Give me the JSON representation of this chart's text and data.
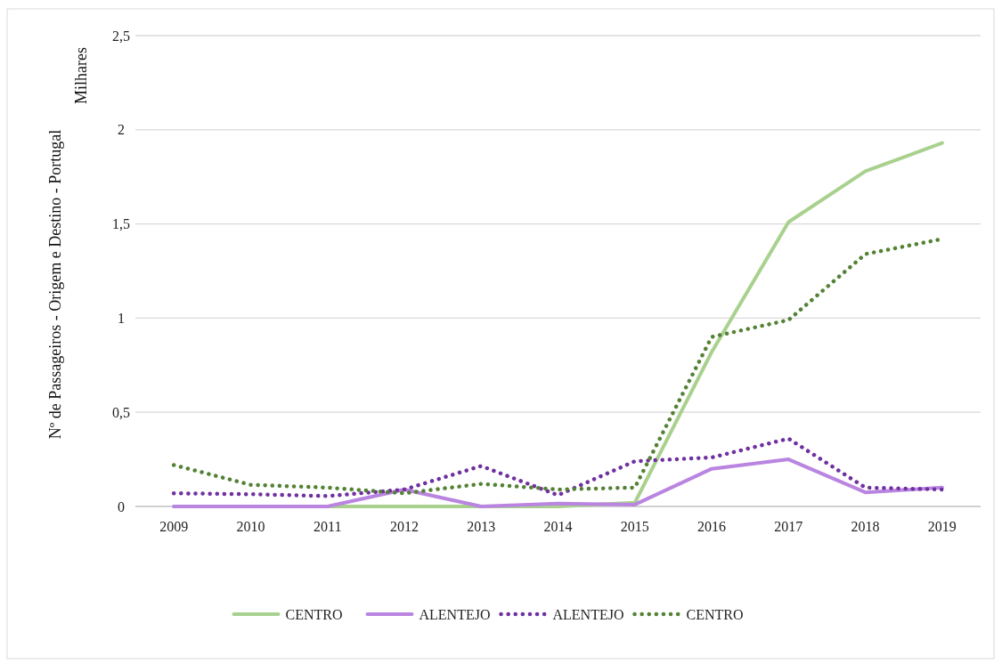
{
  "chart_data": {
    "type": "line",
    "ylabel": "Nº de Passageiros - Origem e Destino - Portugal",
    "annotations": [
      "Milhares"
    ],
    "categories": [
      "2009",
      "2010",
      "2011",
      "2012",
      "2013",
      "2014",
      "2015",
      "2016",
      "2017",
      "2018",
      "2019"
    ],
    "ylim": [
      0,
      2.5
    ],
    "yticks": [
      {
        "value": 0,
        "label": "0"
      },
      {
        "value": 0.5,
        "label": "0,5"
      },
      {
        "value": 1,
        "label": "1"
      },
      {
        "value": 1.5,
        "label": "1,5"
      },
      {
        "value": 2,
        "label": "2"
      },
      {
        "value": 2.5,
        "label": "2,5"
      }
    ],
    "grid": "y",
    "legend": "bottom",
    "series": [
      {
        "name": "CENTRO",
        "color": "#a9d18e",
        "line_style": "solid",
        "values": [
          0,
          0,
          0,
          0,
          0,
          0,
          0.02,
          0.82,
          1.51,
          1.78,
          1.93
        ]
      },
      {
        "name": "ALENTEJO",
        "color": "#b985e0",
        "line_style": "solid",
        "values": [
          0,
          0,
          0,
          0.09,
          0,
          0.015,
          0.01,
          0.2,
          0.25,
          0.075,
          0.1
        ]
      },
      {
        "name": "ALENTEJO",
        "color": "#7030a0",
        "line_style": "dotted",
        "values": [
          0.07,
          0.065,
          0.055,
          0.09,
          0.215,
          0.06,
          0.24,
          0.26,
          0.36,
          0.1,
          0.09
        ]
      },
      {
        "name": "CENTRO",
        "color": "#548235",
        "line_style": "dotted",
        "values": [
          0.22,
          0.115,
          0.1,
          0.07,
          0.12,
          0.09,
          0.1,
          0.9,
          0.99,
          1.34,
          1.42
        ]
      }
    ]
  }
}
